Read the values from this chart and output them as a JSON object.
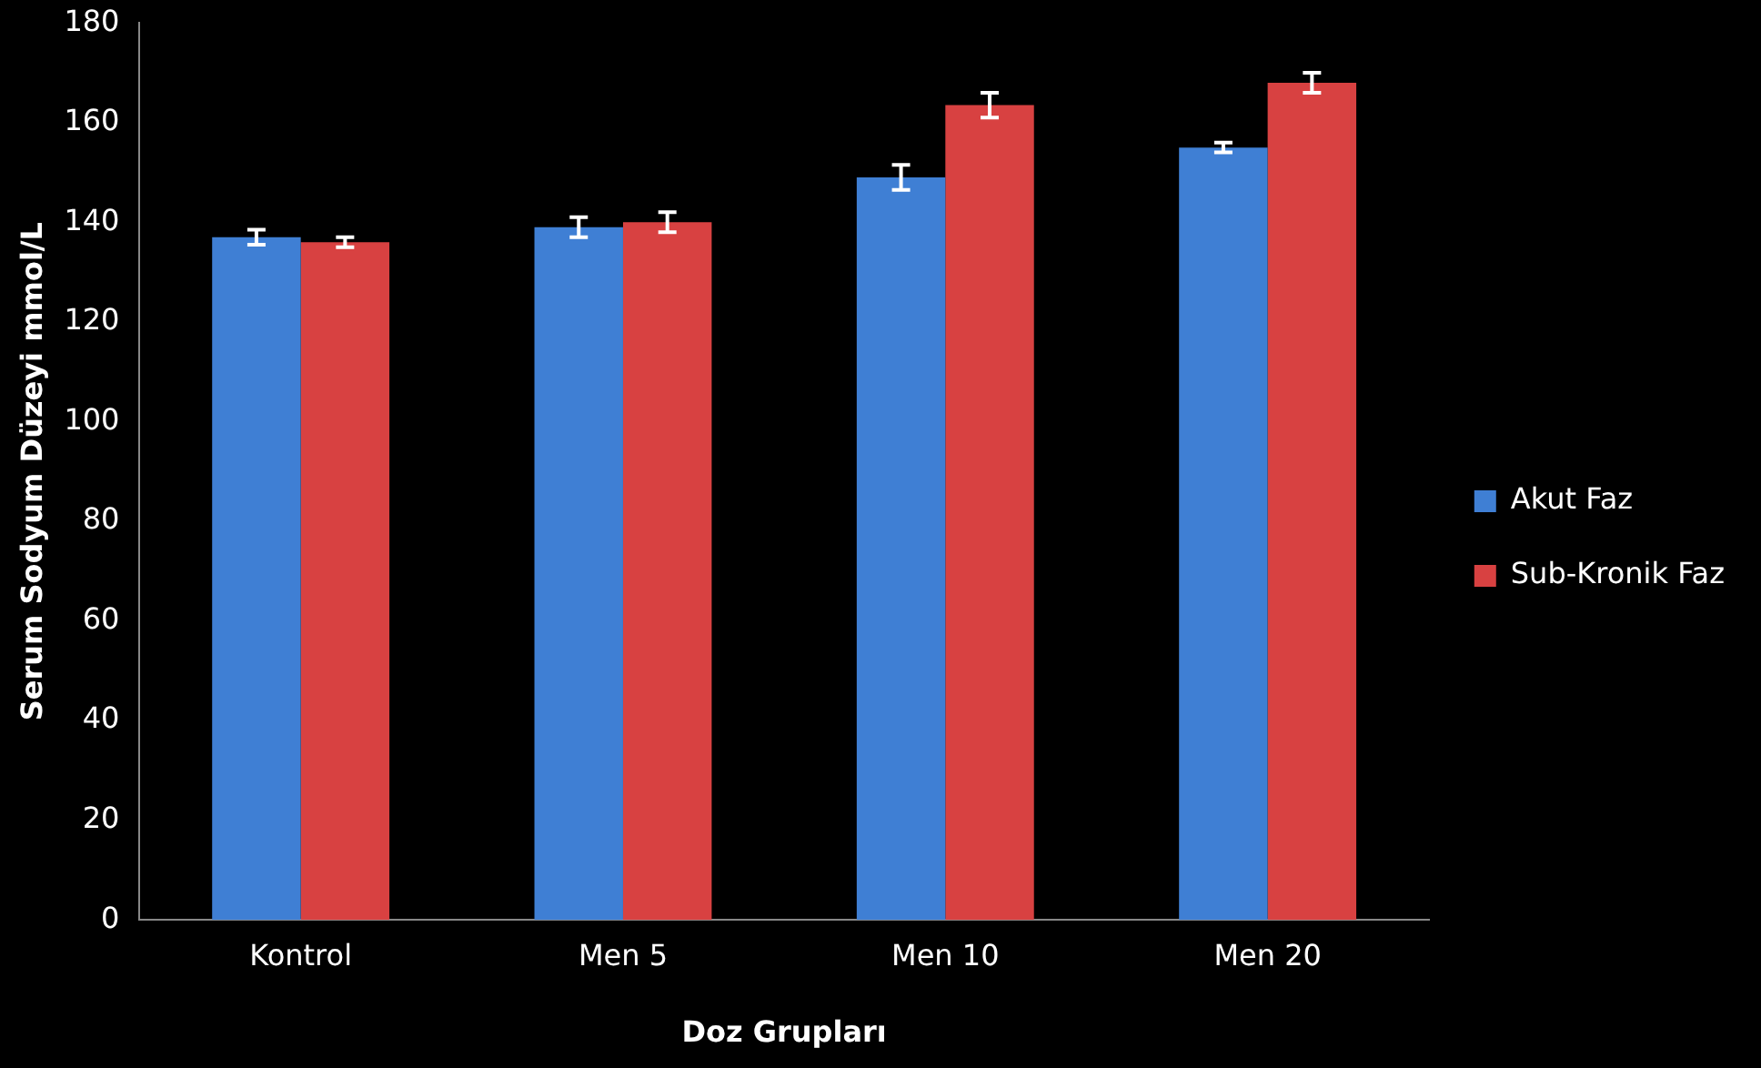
{
  "chart_data": {
    "type": "bar",
    "xlabel": "Doz Grupları",
    "ylabel": "Serum Sodyum Düzeyi mmol/L",
    "categories": [
      "Kontrol",
      "Men 5",
      "Men 10",
      "Men 20"
    ],
    "series": [
      {
        "name": "Akut Faz",
        "color": "#3f7fd4",
        "values": [
          137,
          139,
          149,
          155
        ],
        "errors": [
          1.5,
          2,
          2.5,
          1
        ]
      },
      {
        "name": "Sub-Kronik Faz",
        "color": "#d84141",
        "values": [
          136,
          140,
          163.5,
          168
        ],
        "errors": [
          1,
          2,
          2.5,
          2
        ]
      }
    ],
    "ylim": [
      0,
      180
    ],
    "yticks": [
      0,
      20,
      40,
      60,
      80,
      100,
      120,
      140,
      160,
      180
    ],
    "grid": false,
    "legend": "right"
  }
}
